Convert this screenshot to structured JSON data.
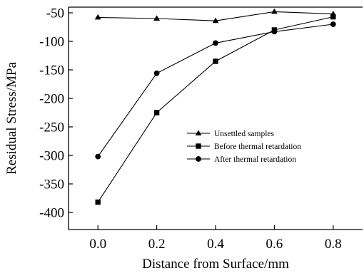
{
  "chart_data": {
    "type": "line",
    "title": "",
    "xlabel": "Distance from Surface/mm",
    "ylabel": "Residual Stress/MPa",
    "xlim": [
      -0.1,
      0.9
    ],
    "ylim": [
      -430,
      -40
    ],
    "x": [
      0.0,
      0.2,
      0.4,
      0.6,
      0.8
    ],
    "xticks": [
      "0.0",
      "0.2",
      "0.4",
      "0.6",
      "0.8"
    ],
    "yticks": [
      "-50",
      "-100",
      "-150",
      "-200",
      "-250",
      "-300",
      "-350",
      "-400"
    ],
    "ytick_values": [
      -50,
      -100,
      -150,
      -200,
      -250,
      -300,
      -350,
      -400
    ],
    "grid": false,
    "legend_position": "center-right",
    "series": [
      {
        "name": "Unsettled samples",
        "marker": "triangle",
        "values": [
          -58,
          -60,
          -64,
          -48,
          -52
        ]
      },
      {
        "name": "Before thermal retardation",
        "marker": "square",
        "values": [
          -382,
          -225,
          -135,
          -80,
          -57
        ]
      },
      {
        "name": "After thermal retardation",
        "marker": "circle",
        "values": [
          -302,
          -156,
          -103,
          -83,
          -70
        ]
      }
    ]
  }
}
